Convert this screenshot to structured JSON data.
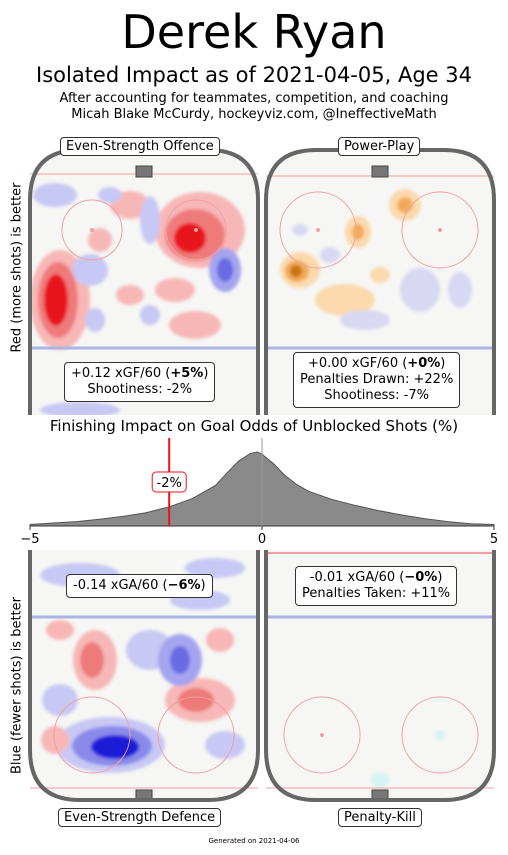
{
  "header": {
    "player": "Derek Ryan",
    "headline": "Isolated Impact as of 2021-04-05, Age 34",
    "subtitle_line1": "After accounting for teammates, competition, and coaching",
    "subtitle_line2": "Micah Blake McCurdy, hockeyviz.com, @IneffectiveMath"
  },
  "axis_labels": {
    "top": "Red (more shots) is better",
    "bottom": "Blue (fewer shots) is better"
  },
  "panels": {
    "es_offence": {
      "title": "Even-Strength Offence",
      "line1_pre": "+0.12 xGF/60 (",
      "line1_bold": "+5%",
      "line1_post": ")",
      "line2": "Shootiness: -2%"
    },
    "power_play": {
      "title": "Power-Play",
      "line1_pre": "+0.00 xGF/60 (",
      "line1_bold": "+0%",
      "line1_post": ")",
      "line2": "Penalties Drawn: +22%",
      "line3": "Shootiness: -7%"
    },
    "es_defence": {
      "title": "Even-Strength Defence",
      "line1_pre": "-0.14 xGA/60 (",
      "line1_bold": "−6%",
      "line1_post": ")"
    },
    "penalty_kill": {
      "title": "Penalty-Kill",
      "line1_pre": "-0.01 xGA/60 (",
      "line1_bold": "−0%",
      "line1_post": ")",
      "line2": "Penalties Taken: +11%"
    }
  },
  "footer": "Generated on 2021-04-06",
  "colors": {
    "red": "#e8141c",
    "blue": "#1a1ad6",
    "orange": "#e8901e",
    "rink": "#666666",
    "density": "#8a8a8a"
  },
  "chart_data": {
    "type": "area",
    "title": "Finishing Impact on Goal Odds of Unblocked Shots (%)",
    "xlim": [
      -5,
      5
    ],
    "ticks": [
      -5,
      0,
      5
    ],
    "tick_labels": [
      "−5",
      "0",
      "5"
    ],
    "marker": {
      "value": -2,
      "label": "-2%"
    },
    "x": [
      -5,
      -4.5,
      -4,
      -3.5,
      -3,
      -2.5,
      -2,
      -1.5,
      -1,
      -0.75,
      -0.5,
      -0.25,
      -0.1,
      0,
      0.25,
      0.5,
      0.75,
      1,
      1.5,
      2,
      2.5,
      3,
      3.5,
      4,
      4.5,
      5
    ],
    "y": [
      0.02,
      0.04,
      0.06,
      0.09,
      0.13,
      0.18,
      0.26,
      0.37,
      0.55,
      0.72,
      0.88,
      0.98,
      1.0,
      0.97,
      0.84,
      0.68,
      0.56,
      0.47,
      0.36,
      0.28,
      0.21,
      0.15,
      0.1,
      0.06,
      0.03,
      0.02
    ]
  }
}
